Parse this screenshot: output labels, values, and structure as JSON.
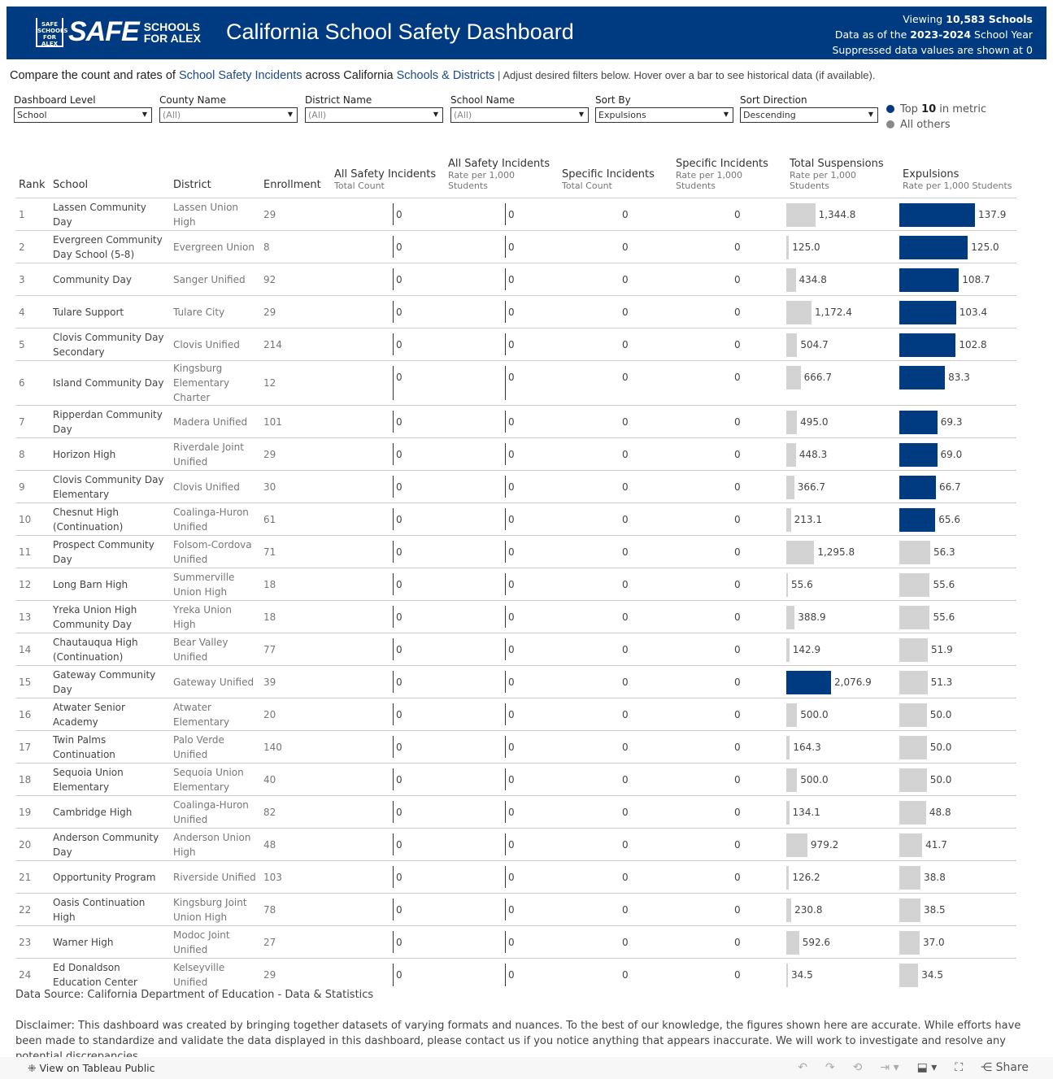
{
  "header": {
    "logo_text": "SAFE SCHOOLS FOR ALEX",
    "title": "California School Safety Dashboard",
    "viewing_prefix": "Viewing ",
    "viewing_count": "10,583 Schools",
    "data_prefix": "Data as of the ",
    "data_year": "2023-2024",
    "data_suffix": " School Year",
    "suppressed": "Suppressed data values are shown at 0"
  },
  "intro": {
    "p1": "Compare the count and rates of ",
    "l1": "School Safety Incidents",
    "p2": " across California ",
    "l2": "Schools & Districts",
    "sep": " | ",
    "p3": "Adjust desired filters below. Hover over a bar to see historical data (if available)."
  },
  "filters": [
    {
      "label": "Dashboard Level",
      "value": "School"
    },
    {
      "label": "County Name",
      "value": "(All)"
    },
    {
      "label": "District Name",
      "value": "(All)"
    },
    {
      "label": "School Name",
      "value": "(All)"
    },
    {
      "label": "Sort By",
      "value": "Expulsions"
    },
    {
      "label": "Sort Direction",
      "value": "Descending"
    }
  ],
  "legend": {
    "top_pre": "Top ",
    "top_n": "10",
    "top_post": " in metric",
    "others": "All others",
    "top_color": "#003a80",
    "others_color": "#888888"
  },
  "colors": {
    "highlight": "#003a80",
    "other": "#d3d3d3"
  },
  "columns": {
    "rank": "Rank",
    "school": "School",
    "district": "District",
    "enrollment": "Enrollment",
    "c1": "All Safety Incidents",
    "c1s": "Total Count",
    "c2": "All Safety Incidents",
    "c2s": "Rate per 1,000 Students",
    "c3": "Specific Incidents",
    "c3s": "Total Count",
    "c4": "Specific Incidents",
    "c4s": "Rate per 1,000 Students",
    "c5": "Total Suspensions",
    "c5s": "Rate per 1,000 Students",
    "c6": "Expulsions",
    "c6s": "Rate per 1,000 Students"
  },
  "rows": [
    [
      "1",
      "Lassen Community Day",
      "Lassen Union High",
      "29",
      0,
      0,
      0,
      0,
      1344.8,
      137.9,
      false,
      true
    ],
    [
      "2",
      "Evergreen Community Day School (5-8)",
      "Evergreen Union",
      "8",
      0,
      0,
      0,
      0,
      125.0,
      125.0,
      false,
      true
    ],
    [
      "3",
      "Community Day",
      "Sanger Unified",
      "92",
      0,
      0,
      0,
      0,
      434.8,
      108.7,
      false,
      true
    ],
    [
      "4",
      "Tulare Support",
      "Tulare City",
      "29",
      0,
      0,
      0,
      0,
      1172.4,
      103.4,
      false,
      true
    ],
    [
      "5",
      "Clovis Community Day Secondary",
      "Clovis Unified",
      "214",
      0,
      0,
      0,
      0,
      504.7,
      102.8,
      false,
      true
    ],
    [
      "6",
      "Island Community Day",
      "Kingsburg Elementary Charter",
      "12",
      0,
      0,
      0,
      0,
      666.7,
      83.3,
      false,
      true
    ],
    [
      "7",
      "Ripperdan Community Day",
      "Madera Unified",
      "101",
      0,
      0,
      0,
      0,
      495.0,
      69.3,
      false,
      true
    ],
    [
      "8",
      "Horizon High",
      "Riverdale Joint Unified",
      "29",
      0,
      0,
      0,
      0,
      448.3,
      69.0,
      false,
      true
    ],
    [
      "9",
      "Clovis Community Day Elementary",
      "Clovis Unified",
      "30",
      0,
      0,
      0,
      0,
      366.7,
      66.7,
      false,
      true
    ],
    [
      "10",
      "Chesnut High (Continuation)",
      "Coalinga-Huron Unified",
      "61",
      0,
      0,
      0,
      0,
      213.1,
      65.6,
      false,
      true
    ],
    [
      "11",
      "Prospect Community Day",
      "Folsom-Cordova Unified",
      "71",
      0,
      0,
      0,
      0,
      1295.8,
      56.3,
      false,
      false
    ],
    [
      "12",
      "Long Barn High",
      "Summerville Union High",
      "18",
      0,
      0,
      0,
      0,
      55.6,
      55.6,
      false,
      false
    ],
    [
      "13",
      "Yreka Union High Community Day",
      "Yreka Union High",
      "18",
      0,
      0,
      0,
      0,
      388.9,
      55.6,
      false,
      false
    ],
    [
      "14",
      "Chautauqua High (Continuation)",
      "Bear Valley Unified",
      "77",
      0,
      0,
      0,
      0,
      142.9,
      51.9,
      false,
      false
    ],
    [
      "15",
      "Gateway Community Day",
      "Gateway Unified",
      "39",
      0,
      0,
      0,
      0,
      2076.9,
      51.3,
      true,
      false
    ],
    [
      "16",
      "Atwater Senior Academy",
      "Atwater Elementary",
      "20",
      0,
      0,
      0,
      0,
      500.0,
      50.0,
      false,
      false
    ],
    [
      "17",
      "Twin Palms Continuation",
      "Palo Verde Unified",
      "140",
      0,
      0,
      0,
      0,
      164.3,
      50.0,
      false,
      false
    ],
    [
      "18",
      "Sequoia Union Elementary",
      "Sequoia Union Elementary",
      "40",
      0,
      0,
      0,
      0,
      500.0,
      50.0,
      false,
      false
    ],
    [
      "19",
      "Cambridge High",
      "Coalinga-Huron Unified",
      "82",
      0,
      0,
      0,
      0,
      134.1,
      48.8,
      false,
      false
    ],
    [
      "20",
      "Anderson Community Day",
      "Anderson Union High",
      "48",
      0,
      0,
      0,
      0,
      979.2,
      41.7,
      false,
      false
    ],
    [
      "21",
      "Opportunity Program",
      "Riverside Unified",
      "103",
      0,
      0,
      0,
      0,
      126.2,
      38.8,
      false,
      false
    ],
    [
      "22",
      "Oasis Continuation High",
      "Kingsburg Joint Union High",
      "78",
      0,
      0,
      0,
      0,
      230.8,
      38.5,
      false,
      false
    ],
    [
      "23",
      "Warner High",
      "Modoc Joint Unified",
      "27",
      0,
      0,
      0,
      0,
      592.6,
      37.0,
      false,
      false
    ],
    [
      "24",
      "Ed Donaldson Education Center",
      "Kelseyville Unified",
      "29",
      0,
      0,
      0,
      0,
      34.5,
      34.5,
      false,
      false
    ]
  ],
  "source": "Data Source: California Department of Education - Data & Statistics",
  "disclaimer": "Disclaimer: This dashboard was created by bringing together datasets of varying formats and nuances. To the best of our knowledge, the figures shown here are accurate. While efforts have been made to standardize and validate the data displayed in this dashboard, please contact us if you notice anything that appears inaccurate. We will work to investigate and resolve any potential discrepancies.",
  "footer": {
    "tableau": "View on Tableau Public",
    "share": "Share"
  }
}
